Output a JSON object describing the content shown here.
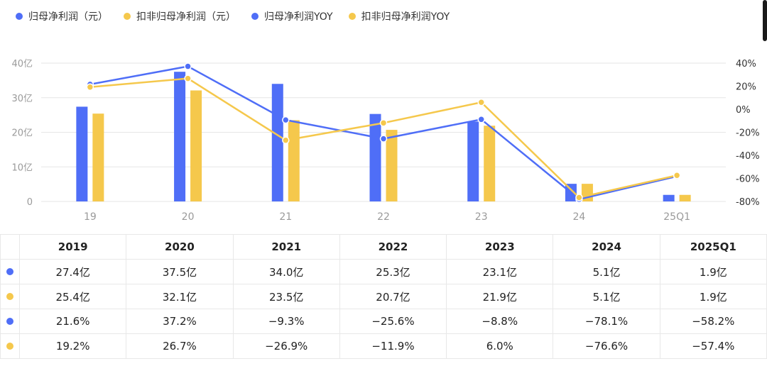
{
  "colors": {
    "blue": "#4f6ef7",
    "yellow": "#f5c84c",
    "grid": "#e6e6e6",
    "axis_text": "#9a9a9a"
  },
  "legend": [
    {
      "label": "归母净利润（元）",
      "color": "#4f6ef7"
    },
    {
      "label": "扣非归母净利润（元）",
      "color": "#f5c84c"
    },
    {
      "label": "归母净利润YOY",
      "color": "#4f6ef7"
    },
    {
      "label": "扣非归母净利润YOY",
      "color": "#f5c84c"
    }
  ],
  "chart_data": {
    "type": "bar",
    "categories": [
      "19",
      "20",
      "21",
      "22",
      "23",
      "24",
      "25Q1"
    ],
    "series": [
      {
        "name": "归母净利润（元）",
        "kind": "bar",
        "axis": "left",
        "values": [
          27.4,
          37.5,
          34.0,
          25.3,
          23.1,
          5.1,
          1.9
        ]
      },
      {
        "name": "扣非归母净利润（元）",
        "kind": "bar",
        "axis": "left",
        "values": [
          25.4,
          32.1,
          23.5,
          20.7,
          21.9,
          5.1,
          1.9
        ]
      },
      {
        "name": "归母净利润YOY",
        "kind": "line",
        "axis": "right",
        "values": [
          21.6,
          37.2,
          -9.3,
          -25.6,
          -8.8,
          -78.1,
          -58.2
        ]
      },
      {
        "name": "扣非归母净利润YOY",
        "kind": "line",
        "axis": "right",
        "values": [
          19.2,
          26.7,
          -26.9,
          -11.9,
          6.0,
          -76.6,
          -57.4
        ]
      }
    ],
    "y_left": {
      "ylim": [
        0,
        40
      ],
      "ticks": [
        0,
        10,
        20,
        30,
        40
      ],
      "tick_labels": [
        "0",
        "10亿",
        "20亿",
        "30亿",
        "40亿"
      ]
    },
    "y_right": {
      "ylim": [
        -80,
        40
      ],
      "ticks": [
        40,
        20,
        0,
        -20,
        -40,
        -60,
        -80
      ],
      "tick_labels": [
        "40%",
        "20%",
        "0%",
        "-20%",
        "-40%",
        "-60%",
        "-80%"
      ]
    },
    "grid": true,
    "legend_position": "top-left"
  },
  "table": {
    "headers": [
      "2019",
      "2020",
      "2021",
      "2022",
      "2023",
      "2024",
      "2025Q1"
    ],
    "rows": [
      {
        "color": "#4f6ef7",
        "cells": [
          "27.4亿",
          "37.5亿",
          "34.0亿",
          "25.3亿",
          "23.1亿",
          "5.1亿",
          "1.9亿"
        ]
      },
      {
        "color": "#f5c84c",
        "cells": [
          "25.4亿",
          "32.1亿",
          "23.5亿",
          "20.7亿",
          "21.9亿",
          "5.1亿",
          "1.9亿"
        ]
      },
      {
        "color": "#4f6ef7",
        "cells": [
          "21.6%",
          "37.2%",
          "−9.3%",
          "−25.6%",
          "−8.8%",
          "−78.1%",
          "−58.2%"
        ]
      },
      {
        "color": "#f5c84c",
        "cells": [
          "19.2%",
          "26.7%",
          "−26.9%",
          "−11.9%",
          "6.0%",
          "−76.6%",
          "−57.4%"
        ]
      }
    ]
  }
}
